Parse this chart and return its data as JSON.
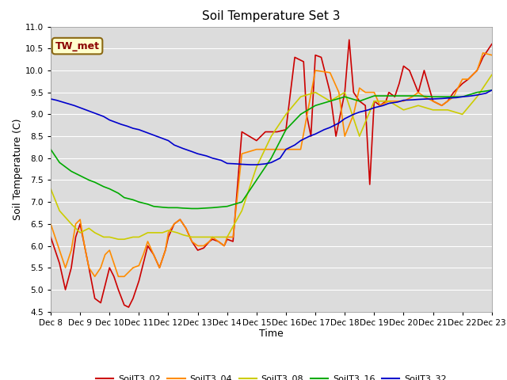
{
  "title": "Soil Temperature Set 3",
  "xlabel": "Time",
  "ylabel": "Soil Temperature (C)",
  "ylim": [
    4.5,
    11.0
  ],
  "xlim": [
    0,
    15
  ],
  "plot_bg": "#dcdcdc",
  "fig_bg": "#ffffff",
  "annotation_label": "TW_met",
  "annotation_color": "#8b0000",
  "annotation_bg": "#ffffcc",
  "annotation_edge": "#8b6914",
  "grid_color": "#ffffff",
  "series_colors": {
    "SoilT3_02": "#cc0000",
    "SoilT3_04": "#ff8c00",
    "SoilT3_08": "#cccc00",
    "SoilT3_16": "#00aa00",
    "SoilT3_32": "#0000cc"
  },
  "linewidth": 1.2,
  "title_fontsize": 11,
  "label_fontsize": 9,
  "tick_fontsize": 7.5,
  "legend_fontsize": 8,
  "s02_x": [
    0,
    0.15,
    0.3,
    0.5,
    0.7,
    0.85,
    1.0,
    1.15,
    1.3,
    1.5,
    1.7,
    1.85,
    2.0,
    2.15,
    2.3,
    2.5,
    2.65,
    2.8,
    3.0,
    3.15,
    3.3,
    3.5,
    3.7,
    3.9,
    4.0,
    4.2,
    4.4,
    4.6,
    4.8,
    5.0,
    5.2,
    5.4,
    5.5,
    5.7,
    5.9,
    6.0,
    6.2,
    6.5,
    7.0,
    7.3,
    7.7,
    8.0,
    8.3,
    8.6,
    8.7,
    8.85,
    9.0,
    9.2,
    9.5,
    9.7,
    9.85,
    10.0,
    10.15,
    10.3,
    10.5,
    10.7,
    10.85,
    11.0,
    11.2,
    11.4,
    11.5,
    11.7,
    11.85,
    12.0,
    12.2,
    12.5,
    12.7,
    13.0,
    13.3,
    13.5,
    13.7,
    14.0,
    14.2,
    14.5,
    14.7,
    15.0
  ],
  "s02_y": [
    6.2,
    5.9,
    5.6,
    5.0,
    5.5,
    6.2,
    6.5,
    6.0,
    5.5,
    4.8,
    4.7,
    5.1,
    5.5,
    5.3,
    5.0,
    4.65,
    4.6,
    4.8,
    5.2,
    5.6,
    6.0,
    5.8,
    5.5,
    5.9,
    6.2,
    6.5,
    6.6,
    6.4,
    6.1,
    5.9,
    5.95,
    6.1,
    6.15,
    6.1,
    6.0,
    6.15,
    6.1,
    8.6,
    8.4,
    8.6,
    8.6,
    8.65,
    10.3,
    10.2,
    9.0,
    8.5,
    10.35,
    10.3,
    9.5,
    8.5,
    9.0,
    9.5,
    10.7,
    9.5,
    9.3,
    9.2,
    7.4,
    9.3,
    9.2,
    9.3,
    9.5,
    9.4,
    9.7,
    10.1,
    10.0,
    9.5,
    10.0,
    9.3,
    9.2,
    9.3,
    9.5,
    9.7,
    9.8,
    10.0,
    10.3,
    10.6
  ],
  "s04_x": [
    0,
    0.15,
    0.3,
    0.5,
    0.7,
    0.85,
    1.0,
    1.15,
    1.3,
    1.5,
    1.7,
    1.85,
    2.0,
    2.15,
    2.3,
    2.5,
    2.65,
    2.8,
    3.0,
    3.15,
    3.3,
    3.5,
    3.7,
    3.9,
    4.0,
    4.2,
    4.4,
    4.6,
    4.8,
    5.0,
    5.2,
    5.4,
    5.5,
    5.7,
    5.9,
    6.0,
    6.2,
    6.5,
    7.0,
    7.5,
    8.0,
    8.5,
    9.0,
    9.5,
    9.8,
    10.0,
    10.3,
    10.5,
    10.7,
    11.0,
    11.2,
    11.5,
    11.7,
    12.0,
    12.3,
    12.5,
    12.7,
    13.0,
    13.3,
    13.5,
    13.7,
    14.0,
    14.2,
    14.5,
    14.7,
    15.0
  ],
  "s04_y": [
    6.5,
    6.2,
    5.9,
    5.5,
    5.9,
    6.5,
    6.6,
    6.0,
    5.5,
    5.3,
    5.5,
    5.8,
    5.9,
    5.6,
    5.3,
    5.3,
    5.4,
    5.5,
    5.55,
    5.8,
    6.1,
    5.8,
    5.5,
    5.9,
    6.3,
    6.5,
    6.6,
    6.4,
    6.1,
    6.0,
    6.0,
    6.1,
    6.2,
    6.1,
    6.0,
    6.2,
    6.2,
    8.1,
    8.2,
    8.2,
    8.2,
    8.2,
    10.0,
    9.95,
    9.5,
    8.5,
    9.0,
    9.6,
    9.5,
    9.5,
    9.2,
    9.3,
    9.3,
    9.3,
    9.4,
    9.5,
    9.4,
    9.3,
    9.2,
    9.3,
    9.4,
    9.8,
    9.8,
    10.0,
    10.4,
    10.35
  ],
  "s08_x": [
    0,
    0.3,
    0.7,
    1.0,
    1.3,
    1.5,
    1.8,
    2.0,
    2.3,
    2.5,
    2.8,
    3.0,
    3.3,
    3.5,
    3.8,
    4.0,
    4.3,
    4.5,
    4.8,
    5.0,
    5.3,
    5.5,
    5.8,
    6.0,
    6.5,
    7.0,
    7.5,
    8.0,
    8.5,
    9.0,
    9.5,
    10.0,
    10.5,
    11.0,
    11.5,
    12.0,
    12.5,
    13.0,
    13.5,
    14.0,
    14.5,
    15.0
  ],
  "s08_y": [
    7.3,
    6.8,
    6.5,
    6.3,
    6.4,
    6.3,
    6.2,
    6.2,
    6.15,
    6.15,
    6.2,
    6.2,
    6.3,
    6.3,
    6.3,
    6.35,
    6.3,
    6.25,
    6.2,
    6.2,
    6.2,
    6.2,
    6.2,
    6.2,
    6.8,
    7.8,
    8.5,
    9.0,
    9.4,
    9.5,
    9.3,
    9.5,
    8.5,
    9.3,
    9.3,
    9.1,
    9.2,
    9.1,
    9.1,
    9.0,
    9.4,
    9.9
  ],
  "s16_x": [
    0,
    0.3,
    0.7,
    1.0,
    1.3,
    1.5,
    1.8,
    2.0,
    2.3,
    2.5,
    2.8,
    3.0,
    3.3,
    3.5,
    3.8,
    4.0,
    4.3,
    4.5,
    4.8,
    5.0,
    5.5,
    6.0,
    6.5,
    7.0,
    7.5,
    8.0,
    8.5,
    9.0,
    9.5,
    10.0,
    10.5,
    11.0,
    11.3,
    11.5,
    12.0,
    12.5,
    13.0,
    13.5,
    14.0,
    14.5,
    15.0
  ],
  "s16_y": [
    8.2,
    7.9,
    7.7,
    7.6,
    7.5,
    7.45,
    7.35,
    7.3,
    7.2,
    7.1,
    7.05,
    7.0,
    6.95,
    6.9,
    6.88,
    6.87,
    6.87,
    6.86,
    6.85,
    6.85,
    6.87,
    6.9,
    7.0,
    7.5,
    8.0,
    8.65,
    9.0,
    9.2,
    9.3,
    9.4,
    9.3,
    9.42,
    9.42,
    9.42,
    9.42,
    9.42,
    9.4,
    9.4,
    9.4,
    9.5,
    9.55
  ],
  "s32_x": [
    0,
    0.2,
    0.4,
    0.6,
    0.8,
    1.0,
    1.2,
    1.4,
    1.6,
    1.8,
    2.0,
    2.2,
    2.4,
    2.6,
    2.8,
    3.0,
    3.2,
    3.4,
    3.6,
    3.8,
    4.0,
    4.2,
    4.5,
    4.8,
    5.0,
    5.3,
    5.5,
    5.8,
    6.0,
    6.3,
    6.5,
    6.8,
    7.0,
    7.3,
    7.5,
    7.8,
    8.0,
    8.3,
    8.5,
    8.8,
    9.0,
    9.3,
    9.5,
    9.8,
    10.0,
    10.3,
    10.5,
    10.8,
    11.0,
    11.3,
    11.5,
    11.8,
    12.0,
    12.3,
    12.5,
    12.8,
    13.0,
    13.3,
    13.5,
    13.8,
    14.0,
    14.3,
    14.5,
    14.8,
    15.0
  ],
  "s32_y": [
    9.35,
    9.32,
    9.28,
    9.24,
    9.2,
    9.15,
    9.1,
    9.05,
    9.0,
    8.95,
    8.87,
    8.82,
    8.77,
    8.73,
    8.68,
    8.65,
    8.6,
    8.55,
    8.5,
    8.45,
    8.4,
    8.3,
    8.22,
    8.15,
    8.1,
    8.05,
    8.0,
    7.95,
    7.88,
    7.87,
    7.86,
    7.85,
    7.85,
    7.87,
    7.9,
    8.0,
    8.2,
    8.3,
    8.4,
    8.5,
    8.55,
    8.65,
    8.7,
    8.8,
    8.9,
    9.0,
    9.05,
    9.1,
    9.15,
    9.2,
    9.25,
    9.28,
    9.32,
    9.33,
    9.34,
    9.35,
    9.35,
    9.36,
    9.37,
    9.38,
    9.4,
    9.42,
    9.44,
    9.48,
    9.55
  ]
}
